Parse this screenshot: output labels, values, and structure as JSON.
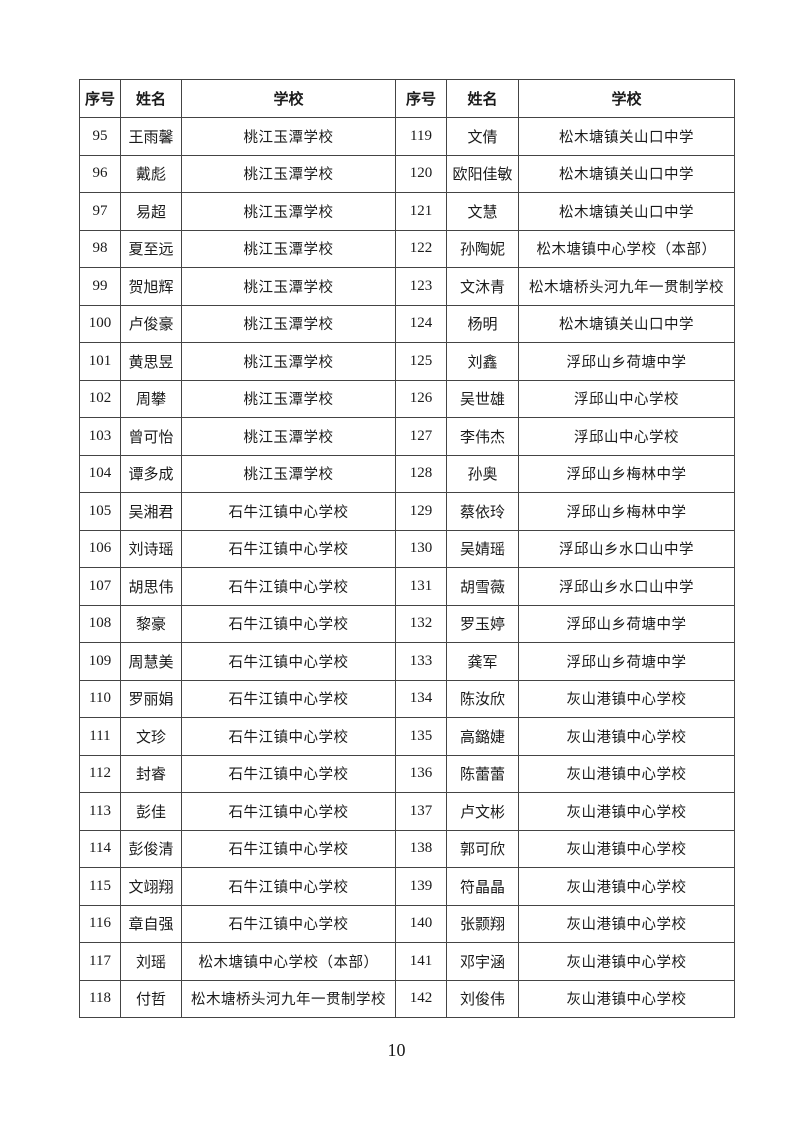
{
  "headers": [
    "序号",
    "姓名",
    "学校",
    "序号",
    "姓名",
    "学校"
  ],
  "left": [
    {
      "no": "95",
      "name": "王雨馨",
      "school": "桃江玉潭学校"
    },
    {
      "no": "96",
      "name": "戴彪",
      "school": "桃江玉潭学校"
    },
    {
      "no": "97",
      "name": "易超",
      "school": "桃江玉潭学校"
    },
    {
      "no": "98",
      "name": "夏至远",
      "school": "桃江玉潭学校"
    },
    {
      "no": "99",
      "name": "贺旭辉",
      "school": "桃江玉潭学校"
    },
    {
      "no": "100",
      "name": "卢俊豪",
      "school": "桃江玉潭学校"
    },
    {
      "no": "101",
      "name": "黄思昱",
      "school": "桃江玉潭学校"
    },
    {
      "no": "102",
      "name": "周攀",
      "school": "桃江玉潭学校"
    },
    {
      "no": "103",
      "name": "曾可怡",
      "school": "桃江玉潭学校"
    },
    {
      "no": "104",
      "name": "谭多成",
      "school": "桃江玉潭学校"
    },
    {
      "no": "105",
      "name": "吴湘君",
      "school": "石牛江镇中心学校"
    },
    {
      "no": "106",
      "name": "刘诗瑶",
      "school": "石牛江镇中心学校"
    },
    {
      "no": "107",
      "name": "胡思伟",
      "school": "石牛江镇中心学校"
    },
    {
      "no": "108",
      "name": "黎豪",
      "school": "石牛江镇中心学校"
    },
    {
      "no": "109",
      "name": "周慧美",
      "school": "石牛江镇中心学校"
    },
    {
      "no": "110",
      "name": "罗丽娟",
      "school": "石牛江镇中心学校"
    },
    {
      "no": "111",
      "name": "文珍",
      "school": "石牛江镇中心学校"
    },
    {
      "no": "112",
      "name": "封睿",
      "school": "石牛江镇中心学校"
    },
    {
      "no": "113",
      "name": "彭佳",
      "school": "石牛江镇中心学校"
    },
    {
      "no": "114",
      "name": "彭俊清",
      "school": "石牛江镇中心学校"
    },
    {
      "no": "115",
      "name": "文翊翔",
      "school": "石牛江镇中心学校"
    },
    {
      "no": "116",
      "name": "章自强",
      "school": "石牛江镇中心学校"
    },
    {
      "no": "117",
      "name": "刘瑶",
      "school": "松木塘镇中心学校（本部）"
    },
    {
      "no": "118",
      "name": "付哲",
      "school": "松木塘桥头河九年一贯制学校"
    }
  ],
  "right": [
    {
      "no": "119",
      "name": "文倩",
      "school": "松木塘镇关山口中学"
    },
    {
      "no": "120",
      "name": "欧阳佳敏",
      "school": "松木塘镇关山口中学"
    },
    {
      "no": "121",
      "name": "文慧",
      "school": "松木塘镇关山口中学"
    },
    {
      "no": "122",
      "name": "孙陶妮",
      "school": "松木塘镇中心学校（本部）"
    },
    {
      "no": "123",
      "name": "文沐青",
      "school": "松木塘桥头河九年一贯制学校"
    },
    {
      "no": "124",
      "name": "杨明",
      "school": "松木塘镇关山口中学"
    },
    {
      "no": "125",
      "name": "刘鑫",
      "school": "浮邱山乡荷塘中学"
    },
    {
      "no": "126",
      "name": "吴世雄",
      "school": "浮邱山中心学校"
    },
    {
      "no": "127",
      "name": "李伟杰",
      "school": "浮邱山中心学校"
    },
    {
      "no": "128",
      "name": "孙奥",
      "school": "浮邱山乡梅林中学"
    },
    {
      "no": "129",
      "name": "蔡依玲",
      "school": "浮邱山乡梅林中学"
    },
    {
      "no": "130",
      "name": "吴婧瑶",
      "school": "浮邱山乡水口山中学"
    },
    {
      "no": "131",
      "name": "胡雪薇",
      "school": "浮邱山乡水口山中学"
    },
    {
      "no": "132",
      "name": "罗玉婷",
      "school": "浮邱山乡荷塘中学"
    },
    {
      "no": "133",
      "name": "龚军",
      "school": "浮邱山乡荷塘中学"
    },
    {
      "no": "134",
      "name": "陈汝欣",
      "school": "灰山港镇中心学校"
    },
    {
      "no": "135",
      "name": "高鏴婕",
      "school": "灰山港镇中心学校"
    },
    {
      "no": "136",
      "name": "陈蕾蕾",
      "school": "灰山港镇中心学校"
    },
    {
      "no": "137",
      "name": "卢文彬",
      "school": "灰山港镇中心学校"
    },
    {
      "no": "138",
      "name": "郭可欣",
      "school": "灰山港镇中心学校"
    },
    {
      "no": "139",
      "name": "符晶晶",
      "school": "灰山港镇中心学校"
    },
    {
      "no": "140",
      "name": "张颢翔",
      "school": "灰山港镇中心学校"
    },
    {
      "no": "141",
      "name": "邓宇涵",
      "school": "灰山港镇中心学校"
    },
    {
      "no": "142",
      "name": "刘俊伟",
      "school": "灰山港镇中心学校"
    }
  ],
  "page_number": "10"
}
